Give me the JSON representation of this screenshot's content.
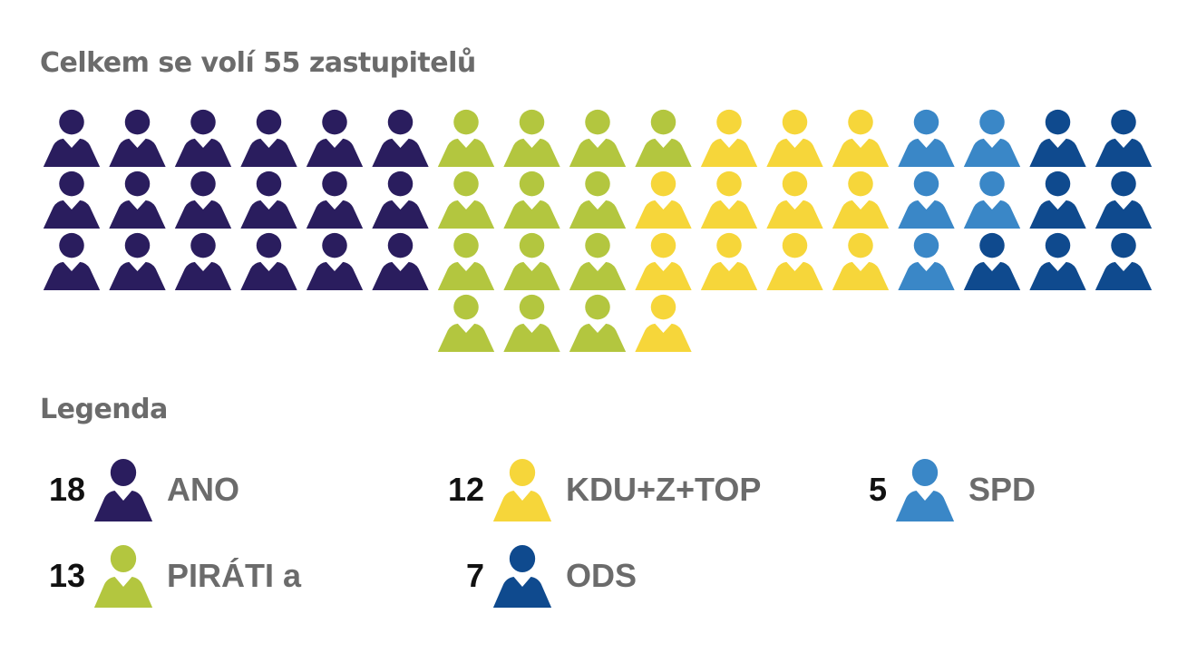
{
  "title": "Celkem se volí 55 zastupitelů",
  "legend_title": "Legenda",
  "chart_data": {
    "type": "waffle",
    "title": "Celkem se volí 55 zastupitelů",
    "total": 55,
    "series": [
      {
        "name": "ANO",
        "value": 18,
        "color": "#2a1d5e"
      },
      {
        "name": "PIRÁTI a",
        "value": 13,
        "color": "#b3c63f"
      },
      {
        "name": "KDU+Z+TOP",
        "value": 12,
        "color": "#f6d63a"
      },
      {
        "name": "SPD",
        "value": 5,
        "color": "#3a87c7"
      },
      {
        "name": "ODS",
        "value": 7,
        "color": "#0f4a8e"
      }
    ],
    "icon": "person-icon",
    "legend": [
      {
        "count": "18",
        "name": "ANO",
        "color": "#2a1d5e"
      },
      {
        "count": "12",
        "name": "KDU+Z+TOP",
        "color": "#f6d63a"
      },
      {
        "count": "5",
        "name": "SPD",
        "color": "#3a87c7"
      },
      {
        "count": "13",
        "name": "PIRÁTI a",
        "color": "#b3c63f"
      },
      {
        "count": "7",
        "name": "ODS",
        "color": "#0f4a8e"
      }
    ]
  }
}
